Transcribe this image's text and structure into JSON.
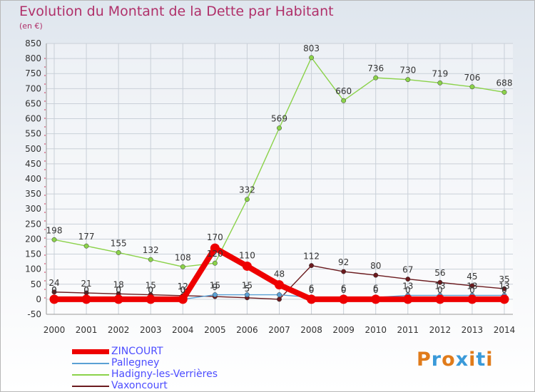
{
  "title": "Evolution du Montant de la Dette par Habitant",
  "unit": "(en €)",
  "logo": {
    "text": "Proxiti",
    "colors": [
      "#e07b1a",
      "#3a9ad9",
      "#e07b1a",
      "#3a9ad9",
      "#e07b1a",
      "#3a9ad9",
      "#e07b1a"
    ]
  },
  "chart_data": {
    "type": "line",
    "title": "Evolution du Montant de la Dette par Habitant",
    "ylabel": "(en €)",
    "ylim": [
      -50,
      850
    ],
    "yticks": [
      -50,
      0,
      50,
      100,
      150,
      200,
      250,
      300,
      350,
      400,
      450,
      500,
      550,
      600,
      650,
      700,
      750,
      800,
      850
    ],
    "categories": [
      "2000",
      "2001",
      "2002",
      "2003",
      "2004",
      "2005",
      "2006",
      "2007",
      "2008",
      "2009",
      "2010",
      "2011",
      "2012",
      "2013",
      "2014"
    ],
    "series": [
      {
        "name": "Vaxoncourt",
        "color": "#6b1a1e",
        "values": [
          24,
          21,
          18,
          15,
          12,
          9,
          5,
          0,
          112,
          92,
          80,
          67,
          56,
          45,
          35
        ],
        "labels": [
          "24",
          "21",
          "18",
          "15",
          "12",
          "9",
          "5",
          "",
          "112",
          "92",
          "80",
          "67",
          "56",
          "45",
          "35"
        ]
      },
      {
        "name": "Hadigny-les-Verrières",
        "color": "#8bd24a",
        "values": [
          198,
          177,
          155,
          132,
          108,
          120,
          332,
          569,
          803,
          660,
          736,
          730,
          719,
          706,
          688
        ],
        "labels": [
          "198",
          "177",
          "155",
          "132",
          "108",
          "120",
          "332",
          "569",
          "803",
          "660",
          "736",
          "730",
          "719",
          "706",
          "688"
        ]
      },
      {
        "name": "Pallegney",
        "color": "#5aa0d4",
        "values": [
          0,
          0,
          0,
          0,
          0,
          15,
          15,
          15,
          6,
          6,
          6,
          13,
          13,
          13,
          13
        ],
        "labels": [
          "0",
          "0",
          "0",
          "0",
          "0",
          "15",
          "15",
          "",
          "6",
          "6",
          "6",
          "13",
          "13",
          "13",
          "13"
        ]
      },
      {
        "name": "ZINCOURT",
        "color": "#ee0000",
        "values": [
          0,
          0,
          0,
          0,
          0,
          170,
          110,
          48,
          0,
          0,
          0,
          0,
          0,
          0,
          0
        ],
        "labels": [
          "0",
          "0",
          "0",
          "0",
          "0",
          "170",
          "110",
          "48",
          "0",
          "0",
          "0",
          "0",
          "0",
          "0",
          "0"
        ]
      }
    ],
    "legend": [
      {
        "name": "ZINCOURT",
        "color": "#ee0000"
      },
      {
        "name": "Pallegney",
        "color": "#5aa0d4"
      },
      {
        "name": "Hadigny-les-Verrières",
        "color": "#8bd24a"
      },
      {
        "name": "Vaxoncourt",
        "color": "#6b1a1e"
      }
    ]
  }
}
